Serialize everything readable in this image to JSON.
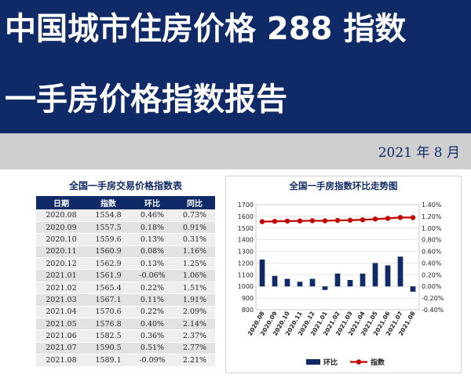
{
  "header": {
    "title_line1": "中国城市住房价格 288 指数",
    "title_line2": "一手房价格指数报告",
    "date": "2021 年 8 月"
  },
  "colors": {
    "banner": "#0f2a66",
    "bar": "#0f2a66",
    "line": "#c00000"
  },
  "table": {
    "title": "全国一手房交易价格指数表",
    "headers": [
      "日期",
      "指数",
      "环比",
      "同比"
    ],
    "rows": [
      [
        "2020.08",
        "1554.8",
        "0.46%",
        "0.73%"
      ],
      [
        "2020.09",
        "1557.5",
        "0.18%",
        "0.91%"
      ],
      [
        "2020.10",
        "1559.6",
        "0.13%",
        "0.31%"
      ],
      [
        "2020.11",
        "1560.9",
        "0.08%",
        "1.16%"
      ],
      [
        "2020.12",
        "1562.9",
        "0.13%",
        "1.25%"
      ],
      [
        "2021.01",
        "1561.9",
        "-0.06%",
        "1.06%"
      ],
      [
        "2021.02",
        "1565.4",
        "0.22%",
        "1.51%"
      ],
      [
        "2021.03",
        "1567.1",
        "0.11%",
        "1.91%"
      ],
      [
        "2021.04",
        "1570.6",
        "0.22%",
        "2.09%"
      ],
      [
        "2021.05",
        "1576.8",
        "0.40%",
        "2.14%"
      ],
      [
        "2021.06",
        "1582.5",
        "0.36%",
        "2.37%"
      ],
      [
        "2021.07",
        "1590.5",
        "0.51%",
        "2.77%"
      ],
      [
        "2021.08",
        "1589.1",
        "-0.09%",
        "2.21%"
      ]
    ]
  },
  "chart_data": {
    "type": "bar",
    "title": "全国一手房指数环比走势图",
    "categories": [
      "2020.08",
      "2020.09",
      "2020.10",
      "2020.11",
      "2020.12",
      "2021.01",
      "2021.02",
      "2021.03",
      "2021.04",
      "2021.05",
      "2021.06",
      "2021.07",
      "2021.08"
    ],
    "series": [
      {
        "name": "环比",
        "type": "bar",
        "axis": "right",
        "values": [
          0.46,
          0.18,
          0.13,
          0.08,
          0.13,
          -0.06,
          0.22,
          0.11,
          0.22,
          0.4,
          0.36,
          0.51,
          -0.09
        ]
      },
      {
        "name": "指数",
        "type": "line",
        "axis": "left",
        "values": [
          1554.8,
          1557.5,
          1559.6,
          1560.9,
          1562.9,
          1561.9,
          1565.4,
          1567.1,
          1570.6,
          1576.8,
          1582.5,
          1590.5,
          1589.1
        ]
      }
    ],
    "ylim_left": [
      800,
      1700
    ],
    "yticks_left": [
      "800",
      "900",
      "1000",
      "1100",
      "1200",
      "1300",
      "1400",
      "1500",
      "1600",
      "1700"
    ],
    "ylim_right": [
      -0.4,
      1.4
    ],
    "yticks_right": [
      "-0.40%",
      "-0.20%",
      "0.00%",
      "0.20%",
      "0.40%",
      "0.60%",
      "0.80%",
      "1.00%",
      "1.20%",
      "1.40%"
    ],
    "grid": true,
    "legend": "bottom"
  }
}
